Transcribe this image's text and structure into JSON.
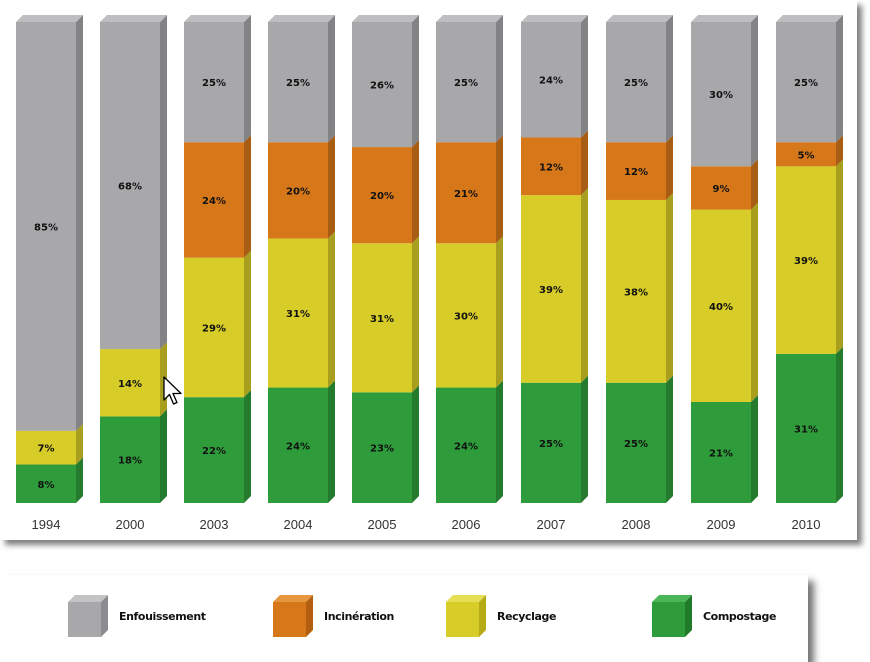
{
  "chart_data": {
    "type": "bar",
    "stacked": true,
    "percent_stacked": true,
    "categories": [
      "1994",
      "2000",
      "2003",
      "2004",
      "2005",
      "2006",
      "2007",
      "2008",
      "2009",
      "2010"
    ],
    "series": [
      {
        "name": "Compostage",
        "color": "#2e9c3a",
        "values": [
          8,
          18,
          22,
          24,
          23,
          24,
          25,
          25,
          21,
          31
        ],
        "labels": [
          "8%",
          "18%",
          "22%",
          "24%",
          "23%",
          "24%",
          "25%",
          "25%",
          "21%",
          "31%"
        ]
      },
      {
        "name": "Recyclage",
        "color": "#d7cc28",
        "values": [
          7,
          14,
          29,
          31,
          31,
          30,
          39,
          38,
          40,
          39
        ],
        "labels": [
          "7%",
          "14%",
          "29%",
          "31%",
          "31%",
          "30%",
          "39%",
          "38%",
          "40%",
          "39%"
        ]
      },
      {
        "name": "Incinération",
        "color": "#d6781a",
        "values": [
          0,
          0,
          24,
          20,
          20,
          21,
          12,
          12,
          9,
          5
        ],
        "labels": [
          "",
          "",
          "24%",
          "20%",
          "20%",
          "21%",
          "12%",
          "12%",
          "9%",
          "5%"
        ]
      },
      {
        "name": "Enfouissement",
        "color": "#a8a8ab",
        "values": [
          85,
          68,
          25,
          25,
          26,
          25,
          24,
          25,
          30,
          25
        ],
        "labels": [
          "85%",
          "68%",
          "25%",
          "25%",
          "26%",
          "25%",
          "24%",
          "25%",
          "30%",
          "25%"
        ]
      }
    ],
    "ylim": [
      0,
      100
    ],
    "grid": false,
    "legend_position": "bottom"
  },
  "legend": {
    "items": [
      {
        "label": "Enfouissement",
        "color": "#a8a8ab",
        "side": "#8c8c90",
        "top": "#c4c4c7"
      },
      {
        "label": "Incinération",
        "color": "#d6781a",
        "side": "#b45f0f",
        "top": "#e7953f"
      },
      {
        "label": "Recyclage",
        "color": "#d7cc28",
        "side": "#b5ab16",
        "top": "#e6de55"
      },
      {
        "label": "Compostage",
        "color": "#2e9c3a",
        "side": "#1f7a2a",
        "top": "#4cb556"
      }
    ]
  },
  "cursor": {
    "icon": "mouse-pointer-icon"
  }
}
